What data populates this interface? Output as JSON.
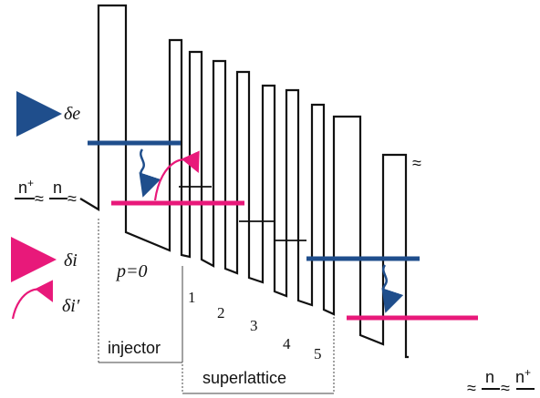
{
  "legend": {
    "delta_e": "δe",
    "delta_i": "δi",
    "delta_i_prime": "δi′"
  },
  "labels": {
    "p_eq": "p=0",
    "injector": "injector",
    "superlattice": "superlattice",
    "wells": [
      "1",
      "2",
      "3",
      "4",
      "5"
    ],
    "left_contact": {
      "n_plus": "n+",
      "n": "n"
    },
    "right_contact": {
      "n": "n",
      "n_plus": "n+"
    },
    "break_mark": "≈"
  },
  "colors": {
    "electron_level": "#1f4e8c",
    "ionized_level": "#e8197a",
    "structure": "#111111"
  }
}
